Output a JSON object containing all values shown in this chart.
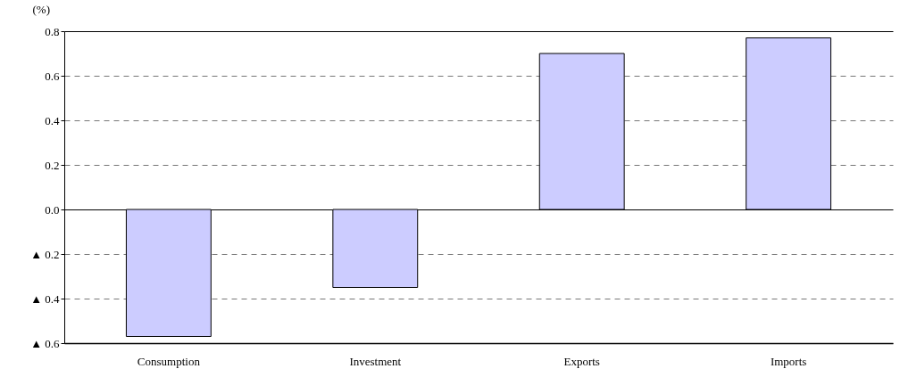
{
  "chart_data": {
    "type": "bar",
    "ylabel": "(%)",
    "categories": [
      "Consumption",
      "Investment",
      "Exports",
      "Imports"
    ],
    "values": [
      -0.57,
      -0.35,
      0.7,
      0.77
    ],
    "color": "#ccccff",
    "ylim": [
      -0.6,
      0.8
    ],
    "yticks": [
      {
        "value": -0.6,
        "label": "▲ 0.6"
      },
      {
        "value": -0.4,
        "label": "▲ 0.4"
      },
      {
        "value": -0.2,
        "label": "▲ 0.2"
      },
      {
        "value": 0,
        "label": "0.0"
      },
      {
        "value": 0.2,
        "label": "0.2"
      },
      {
        "value": 0.4,
        "label": "0.4"
      },
      {
        "value": 0.6,
        "label": "0.6"
      },
      {
        "value": 0.8,
        "label": "0.8"
      }
    ],
    "grid": "y"
  }
}
